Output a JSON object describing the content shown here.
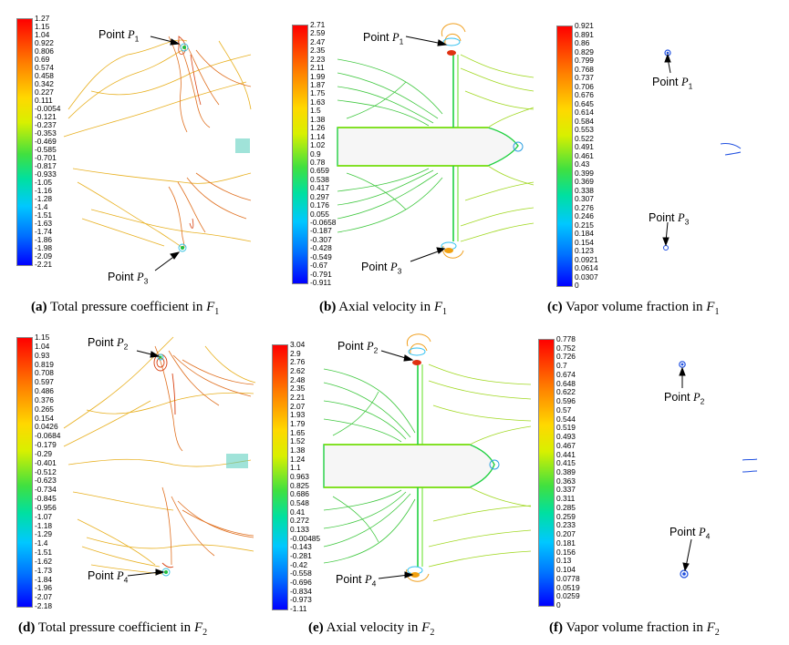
{
  "panels": [
    {
      "id": "a",
      "colorbar_labels": [
        "1.27",
        "1.15",
        "1.04",
        "0.922",
        "0.806",
        "0.69",
        "0.574",
        "0.458",
        "0.342",
        "0.227",
        "0.111",
        "-0.0054",
        "-0.121",
        "-0.237",
        "-0.353",
        "-0.469",
        "-0.585",
        "-0.701",
        "-0.817",
        "-0.933",
        "-1.05",
        "-1.16",
        "-1.28",
        "-1.4",
        "-1.51",
        "-1.63",
        "-1.74",
        "-1.86",
        "-1.98",
        "-2.09",
        "-2.21"
      ],
      "point_top": {
        "text": "Point ",
        "symbol": "P",
        "sub": "1"
      },
      "point_bottom": {
        "text": "Point ",
        "symbol": "P",
        "sub": "3"
      },
      "caption": {
        "letter": "(a)",
        "text": " Total pressure coefficient in ",
        "var": "F",
        "sub": "1"
      }
    },
    {
      "id": "b",
      "colorbar_labels": [
        "2.71",
        "2.59",
        "2.47",
        "2.35",
        "2.23",
        "2.11",
        "1.99",
        "1.87",
        "1.75",
        "1.63",
        "1.5",
        "1.38",
        "1.26",
        "1.14",
        "1.02",
        "0.9",
        "0.78",
        "0.659",
        "0.538",
        "0.417",
        "0.297",
        "0.176",
        "0.055",
        "-0.0658",
        "-0.187",
        "-0.307",
        "-0.428",
        "-0.549",
        "-0.67",
        "-0.791",
        "-0.911"
      ],
      "point_top": {
        "text": "Point ",
        "symbol": "P",
        "sub": "1"
      },
      "point_bottom": {
        "text": "Point ",
        "symbol": "P",
        "sub": "3"
      },
      "caption": {
        "letter": "(b)",
        "text": " Axial velocity in ",
        "var": "F",
        "sub": "1"
      }
    },
    {
      "id": "c",
      "colorbar_labels": [
        "0.921",
        "0.891",
        "0.86",
        "0.829",
        "0.799",
        "0.768",
        "0.737",
        "0.706",
        "0.676",
        "0.645",
        "0.614",
        "0.584",
        "0.553",
        "0.522",
        "0.491",
        "0.461",
        "0.43",
        "0.399",
        "0.369",
        "0.338",
        "0.307",
        "0.276",
        "0.246",
        "0.215",
        "0.184",
        "0.154",
        "0.123",
        "0.0921",
        "0.0614",
        "0.0307",
        "0"
      ],
      "point_top": {
        "text": "Point ",
        "symbol": "P",
        "sub": "1"
      },
      "point_bottom": {
        "text": "Point ",
        "symbol": "P",
        "sub": "3"
      },
      "caption": {
        "letter": "(c)",
        "text": " Vapor volume fraction in ",
        "var": "F",
        "sub": "1"
      }
    },
    {
      "id": "d",
      "colorbar_labels": [
        "1.15",
        "1.04",
        "0.93",
        "0.819",
        "0.708",
        "0.597",
        "0.486",
        "0.376",
        "0.265",
        "0.154",
        "0.0426",
        "-0.0684",
        "-0.179",
        "-0.29",
        "-0.401",
        "-0.512",
        "-0.623",
        "-0.734",
        "-0.845",
        "-0.956",
        "-1.07",
        "-1.18",
        "-1.29",
        "-1.4",
        "-1.51",
        "-1.62",
        "-1.73",
        "-1.84",
        "-1.96",
        "-2.07",
        "-2.18"
      ],
      "point_top": {
        "text": "Point ",
        "symbol": "P",
        "sub": "2"
      },
      "point_bottom": {
        "text": "Point ",
        "symbol": "P",
        "sub": "4"
      },
      "caption": {
        "letter": "(d)",
        "text": " Total pressure coefficient in ",
        "var": "F",
        "sub": "2"
      }
    },
    {
      "id": "e",
      "colorbar_labels": [
        "3.04",
        "2.9",
        "2.76",
        "2.62",
        "2.48",
        "2.35",
        "2.21",
        "2.07",
        "1.93",
        "1.79",
        "1.65",
        "1.52",
        "1.38",
        "1.24",
        "1.1",
        "0.963",
        "0.825",
        "0.686",
        "0.548",
        "0.41",
        "0.272",
        "0.133",
        "-0.00485",
        "-0.143",
        "-0.281",
        "-0.42",
        "-0.558",
        "-0.696",
        "-0.834",
        "-0.973",
        "-1.11"
      ],
      "point_top": {
        "text": "Point ",
        "symbol": "P",
        "sub": "2"
      },
      "point_bottom": {
        "text": "Point ",
        "symbol": "P",
        "sub": "4"
      },
      "caption": {
        "letter": "(e)",
        "text": " Axial velocity in ",
        "var": "F",
        "sub": "2"
      }
    },
    {
      "id": "f",
      "colorbar_labels": [
        "0.778",
        "0.752",
        "0.726",
        "0.7",
        "0.674",
        "0.648",
        "0.622",
        "0.596",
        "0.57",
        "0.544",
        "0.519",
        "0.493",
        "0.467",
        "0.441",
        "0.415",
        "0.389",
        "0.363",
        "0.337",
        "0.311",
        "0.285",
        "0.259",
        "0.233",
        "0.207",
        "0.181",
        "0.156",
        "0.13",
        "0.104",
        "0.0778",
        "0.0519",
        "0.0259",
        "0"
      ],
      "point_top": {
        "text": "Point ",
        "symbol": "P",
        "sub": "2"
      },
      "point_bottom": {
        "text": "Point ",
        "symbol": "P",
        "sub": "4"
      },
      "caption": {
        "letter": "(f)",
        "text": " Vapor volume fraction in ",
        "var": "F",
        "sub": "2"
      }
    }
  ]
}
